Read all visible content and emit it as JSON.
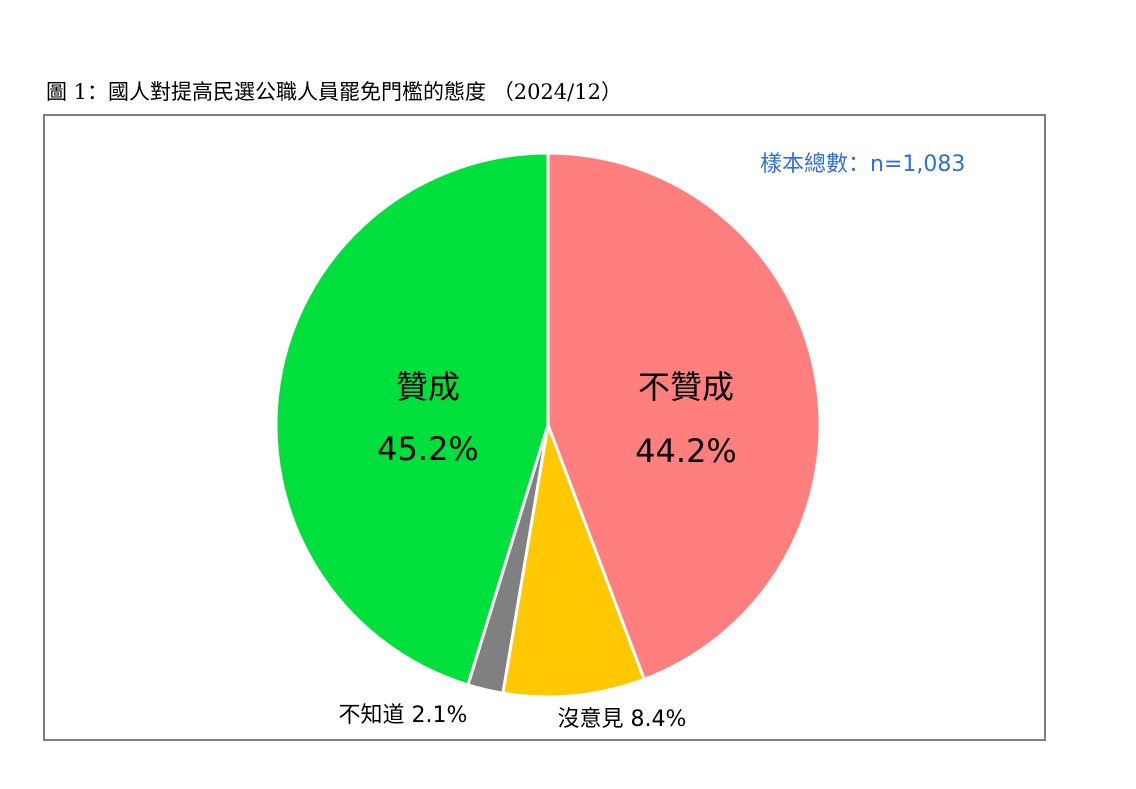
{
  "caption": "圖 1：國人對提高民選公職人員罷免門檻的態度 （2024/12）",
  "sample_note": "樣本總數：n=1,083",
  "chart_data": {
    "type": "pie",
    "title": "",
    "slices": [
      {
        "label": "不贊成",
        "value": 44.2,
        "display": "44.2%",
        "color": "#ff7f7f"
      },
      {
        "label": "沒意見",
        "value": 8.4,
        "display": "8.4%",
        "color": "#ffc800"
      },
      {
        "label": "不知道",
        "value": 2.1,
        "display": "2.1%",
        "color": "#808080"
      },
      {
        "label": "贊成",
        "value": 45.2,
        "display": "45.2%",
        "color": "#00e03c"
      }
    ],
    "start": "12 o'clock",
    "direction": "clockwise",
    "legend": "none"
  }
}
